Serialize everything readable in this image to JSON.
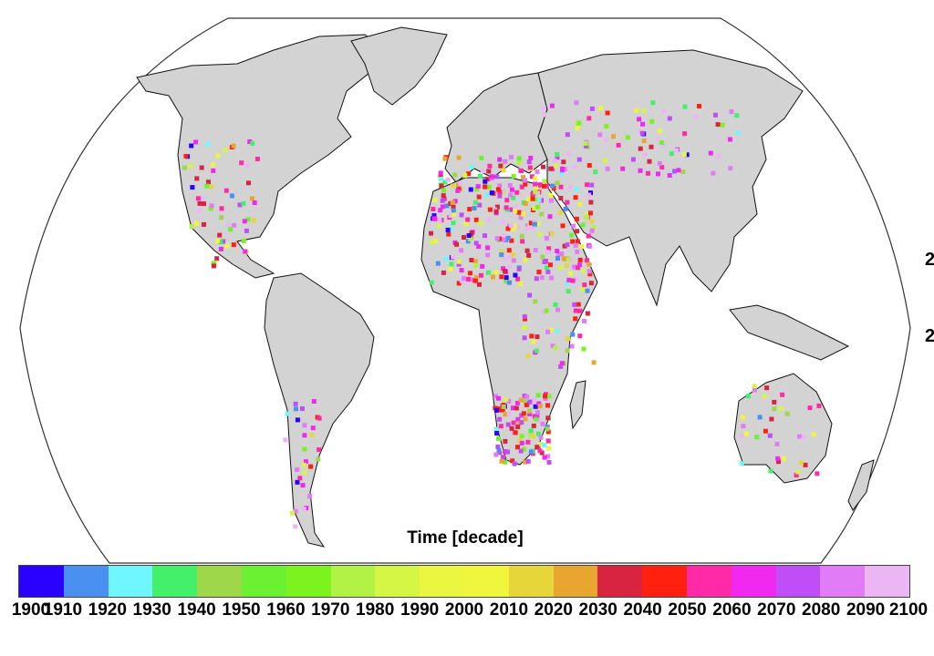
{
  "map": {
    "projection": "robinson",
    "land_color": "#d3d3d3",
    "border_color": "#000000",
    "ocean_color": "#ffffff"
  },
  "legend": {
    "title": "Time [decade]",
    "ticks": [
      "1900",
      "1910",
      "1920",
      "1930",
      "1940",
      "1950",
      "1960",
      "1970",
      "1980",
      "1990",
      "2000",
      "2010",
      "2020",
      "2030",
      "2040",
      "2050",
      "2060",
      "2070",
      "2080",
      "2090",
      "2100"
    ],
    "colors": [
      "#2a00ff",
      "#4a90f0",
      "#6ff6ff",
      "#44f06a",
      "#9ed84a",
      "#6cf032",
      "#7cf21e",
      "#b2f246",
      "#d6f646",
      "#eaf640",
      "#f0f63c",
      "#e6d63a",
      "#e8a630",
      "#d82440",
      "#ff2010",
      "#ff2aa8",
      "#f028f0",
      "#c04ef8",
      "#e27cf6",
      "#ecb6f4"
    ]
  },
  "stray_labels": [
    "2",
    "2"
  ]
}
